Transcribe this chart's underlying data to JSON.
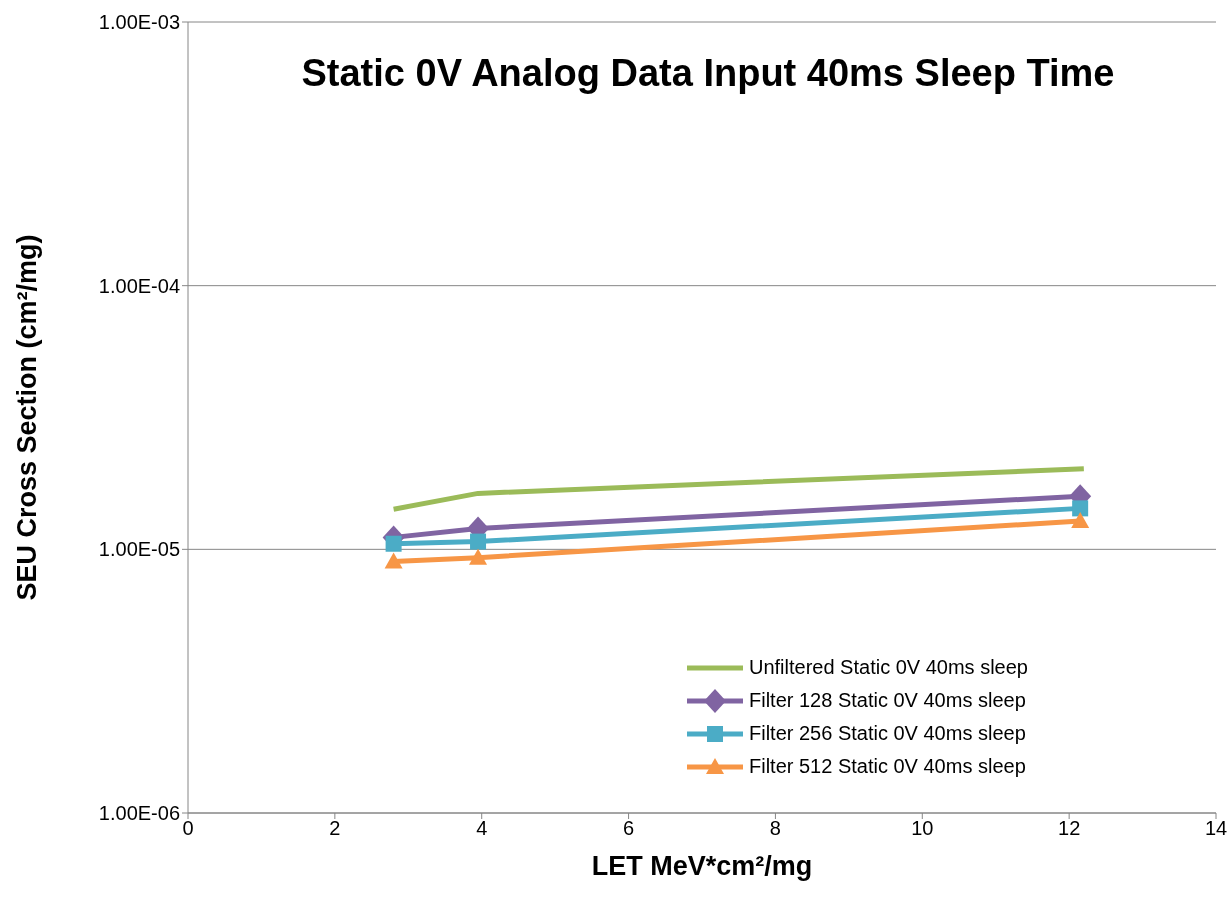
{
  "chart_data": {
    "type": "line",
    "title": "Static 0V Analog Data Input 40ms Sleep Time",
    "xlabel": "LET MeV*cm²/mg",
    "ylabel": "SEU Cross Section (cm²/mg)",
    "log": "y",
    "grid": "y",
    "legend": "bottom right",
    "line_style": "solid",
    "xlim": [
      0,
      14
    ],
    "xticks": [
      0,
      2,
      4,
      6,
      8,
      10,
      12,
      14
    ],
    "ylim": [
      1e-06,
      0.001
    ],
    "yticks": [
      {
        "value": 1e-06,
        "label": "1.00E-06"
      },
      {
        "value": 1e-05,
        "label": "1.00E-05"
      },
      {
        "value": 0.0001,
        "label": "1.00E-04"
      },
      {
        "value": 0.001,
        "label": "1.00E-03"
      }
    ],
    "series": [
      {
        "name": "Unfiltered Static 0V 40ms sleep",
        "color": "#9bbb59",
        "marker": "none",
        "x": [
          2.8,
          3.95,
          12.2
        ],
        "values": [
          1.42e-05,
          1.63e-05,
          2.02e-05
        ]
      },
      {
        "name": "Filter 128 Static 0V 40ms sleep",
        "color": "#8064a2",
        "marker": "diamond",
        "x": [
          2.8,
          3.95,
          12.15
        ],
        "values": [
          1.11e-05,
          1.2e-05,
          1.59e-05
        ]
      },
      {
        "name": "Filter 256 Static 0V 40ms sleep",
        "color": "#4bacc6",
        "marker": "square",
        "x": [
          2.8,
          3.95,
          12.15
        ],
        "values": [
          1.05e-05,
          1.07e-05,
          1.43e-05
        ]
      },
      {
        "name": "Filter 512 Static 0V 40ms sleep",
        "color": "#f79646",
        "marker": "triangle",
        "x": [
          2.8,
          3.95,
          12.15
        ],
        "values": [
          9e-06,
          9.3e-06,
          1.28e-05
        ]
      }
    ]
  }
}
